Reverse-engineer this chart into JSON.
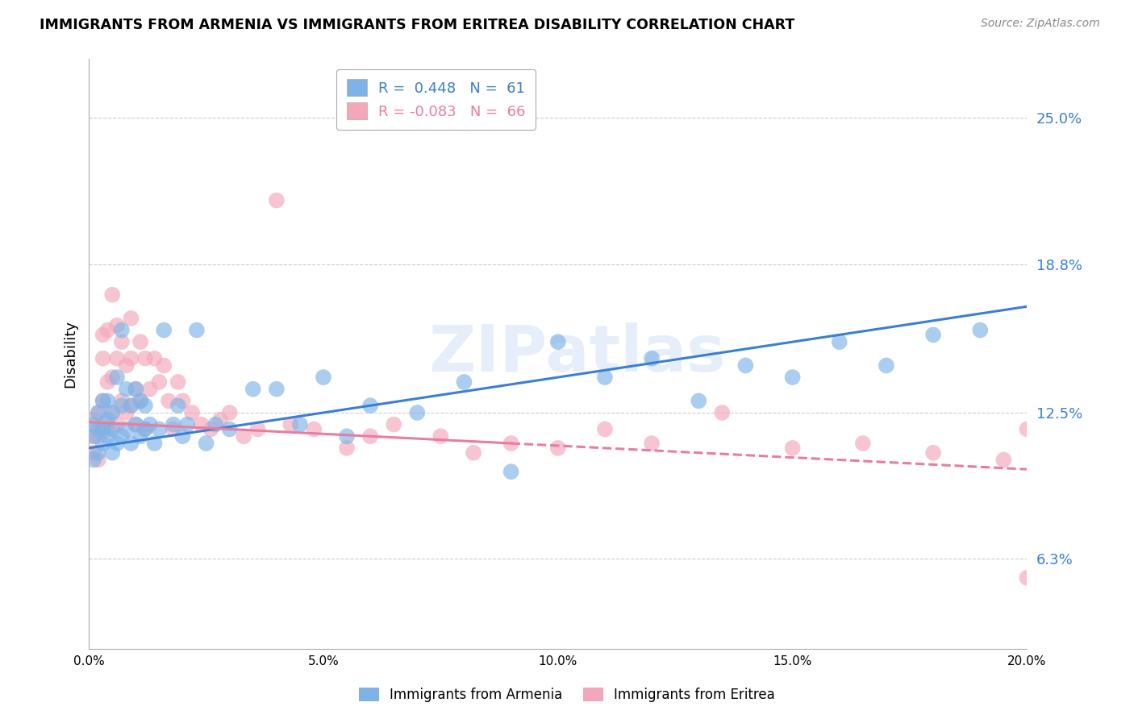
{
  "title": "IMMIGRANTS FROM ARMENIA VS IMMIGRANTS FROM ERITREA DISABILITY CORRELATION CHART",
  "source": "Source: ZipAtlas.com",
  "xlabel_vals": [
    0.0,
    0.05,
    0.1,
    0.15,
    0.2
  ],
  "ylabel_vals": [
    0.063,
    0.125,
    0.188,
    0.25
  ],
  "xmin": 0.0,
  "xmax": 0.2,
  "ymin": 0.025,
  "ymax": 0.275,
  "ylabel": "Disability",
  "watermark": "ZIPatlas",
  "blue_color": "#7eb3e8",
  "pink_color": "#f4a7b9",
  "trend_blue": "#3a7fd5",
  "trend_pink": "#e87da0",
  "solid_cutoff": 0.09,
  "armenia_scatter_x": [
    0.001,
    0.001,
    0.001,
    0.002,
    0.002,
    0.002,
    0.003,
    0.003,
    0.003,
    0.004,
    0.004,
    0.004,
    0.005,
    0.005,
    0.005,
    0.006,
    0.006,
    0.007,
    0.007,
    0.007,
    0.008,
    0.008,
    0.009,
    0.009,
    0.01,
    0.01,
    0.011,
    0.011,
    0.012,
    0.012,
    0.013,
    0.014,
    0.015,
    0.016,
    0.018,
    0.019,
    0.02,
    0.021,
    0.023,
    0.025,
    0.027,
    0.03,
    0.035,
    0.04,
    0.045,
    0.05,
    0.055,
    0.06,
    0.07,
    0.08,
    0.09,
    0.1,
    0.11,
    0.12,
    0.13,
    0.14,
    0.15,
    0.16,
    0.17,
    0.18,
    0.19
  ],
  "armenia_scatter_y": [
    0.115,
    0.12,
    0.105,
    0.118,
    0.108,
    0.125,
    0.112,
    0.118,
    0.13,
    0.115,
    0.122,
    0.13,
    0.108,
    0.118,
    0.125,
    0.112,
    0.14,
    0.115,
    0.128,
    0.16,
    0.118,
    0.135,
    0.112,
    0.128,
    0.12,
    0.135,
    0.115,
    0.13,
    0.118,
    0.128,
    0.12,
    0.112,
    0.118,
    0.16,
    0.12,
    0.128,
    0.115,
    0.12,
    0.16,
    0.112,
    0.12,
    0.118,
    0.135,
    0.135,
    0.12,
    0.14,
    0.115,
    0.128,
    0.125,
    0.138,
    0.1,
    0.155,
    0.14,
    0.148,
    0.13,
    0.145,
    0.14,
    0.155,
    0.145,
    0.158,
    0.16
  ],
  "eritrea_scatter_x": [
    0.001,
    0.001,
    0.001,
    0.002,
    0.002,
    0.002,
    0.003,
    0.003,
    0.003,
    0.003,
    0.004,
    0.004,
    0.004,
    0.005,
    0.005,
    0.005,
    0.006,
    0.006,
    0.006,
    0.007,
    0.007,
    0.008,
    0.008,
    0.009,
    0.009,
    0.009,
    0.01,
    0.01,
    0.011,
    0.011,
    0.012,
    0.012,
    0.013,
    0.014,
    0.015,
    0.016,
    0.017,
    0.018,
    0.019,
    0.02,
    0.022,
    0.024,
    0.026,
    0.028,
    0.03,
    0.033,
    0.036,
    0.04,
    0.043,
    0.048,
    0.055,
    0.06,
    0.065,
    0.075,
    0.082,
    0.09,
    0.1,
    0.11,
    0.12,
    0.135,
    0.15,
    0.165,
    0.18,
    0.195,
    0.2,
    0.2
  ],
  "eritrea_scatter_y": [
    0.115,
    0.122,
    0.108,
    0.125,
    0.115,
    0.105,
    0.148,
    0.13,
    0.12,
    0.158,
    0.118,
    0.138,
    0.16,
    0.125,
    0.14,
    0.175,
    0.12,
    0.148,
    0.162,
    0.13,
    0.155,
    0.125,
    0.145,
    0.128,
    0.148,
    0.165,
    0.12,
    0.135,
    0.13,
    0.155,
    0.118,
    0.148,
    0.135,
    0.148,
    0.138,
    0.145,
    0.13,
    0.118,
    0.138,
    0.13,
    0.125,
    0.12,
    0.118,
    0.122,
    0.125,
    0.115,
    0.118,
    0.215,
    0.12,
    0.118,
    0.11,
    0.115,
    0.12,
    0.115,
    0.108,
    0.112,
    0.11,
    0.118,
    0.112,
    0.125,
    0.11,
    0.112,
    0.108,
    0.105,
    0.118,
    0.055
  ]
}
